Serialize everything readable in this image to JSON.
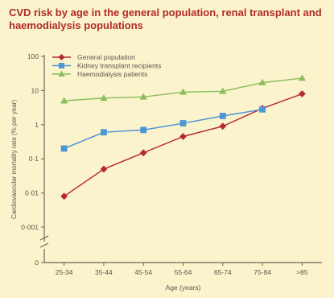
{
  "chart_data": {
    "type": "line",
    "title": "CVD risk by age in the general population, renal transplant and haemodialysis populations",
    "xlabel": "Age (years)",
    "ylabel": "Cardiovascular mortality rate (% per year)",
    "categories": [
      "25-34",
      "35-44",
      "45-54",
      "55-64",
      "65-74",
      "75-84",
      ">85"
    ],
    "y_scale": "log",
    "y_ticks": [
      {
        "label": "100",
        "value": 100
      },
      {
        "label": "10",
        "value": 10
      },
      {
        "label": "1",
        "value": 1
      },
      {
        "label": "0·1",
        "value": 0.1
      },
      {
        "label": "0·01",
        "value": 0.01
      },
      {
        "label": "0·001",
        "value": 0.001
      },
      {
        "label": "0",
        "value": 0
      }
    ],
    "ylim": [
      0.001,
      100
    ],
    "axis_break": true,
    "grid": false,
    "legend_position": "top-left",
    "series": [
      {
        "name": "General population",
        "color": "#b42b35",
        "marker": "diamond",
        "values": [
          0.008,
          0.05,
          0.15,
          0.45,
          0.9,
          3,
          8
        ]
      },
      {
        "name": "Kidney transplant recipients",
        "color": "#4c95d6",
        "marker": "square",
        "values": [
          0.2,
          0.6,
          0.7,
          1.1,
          1.8,
          2.8,
          null
        ]
      },
      {
        "name": "Haemodialysis patients",
        "color": "#8bbd5f",
        "marker": "triangle",
        "values": [
          5,
          6,
          6.5,
          9,
          9.5,
          17,
          23
        ]
      }
    ]
  }
}
